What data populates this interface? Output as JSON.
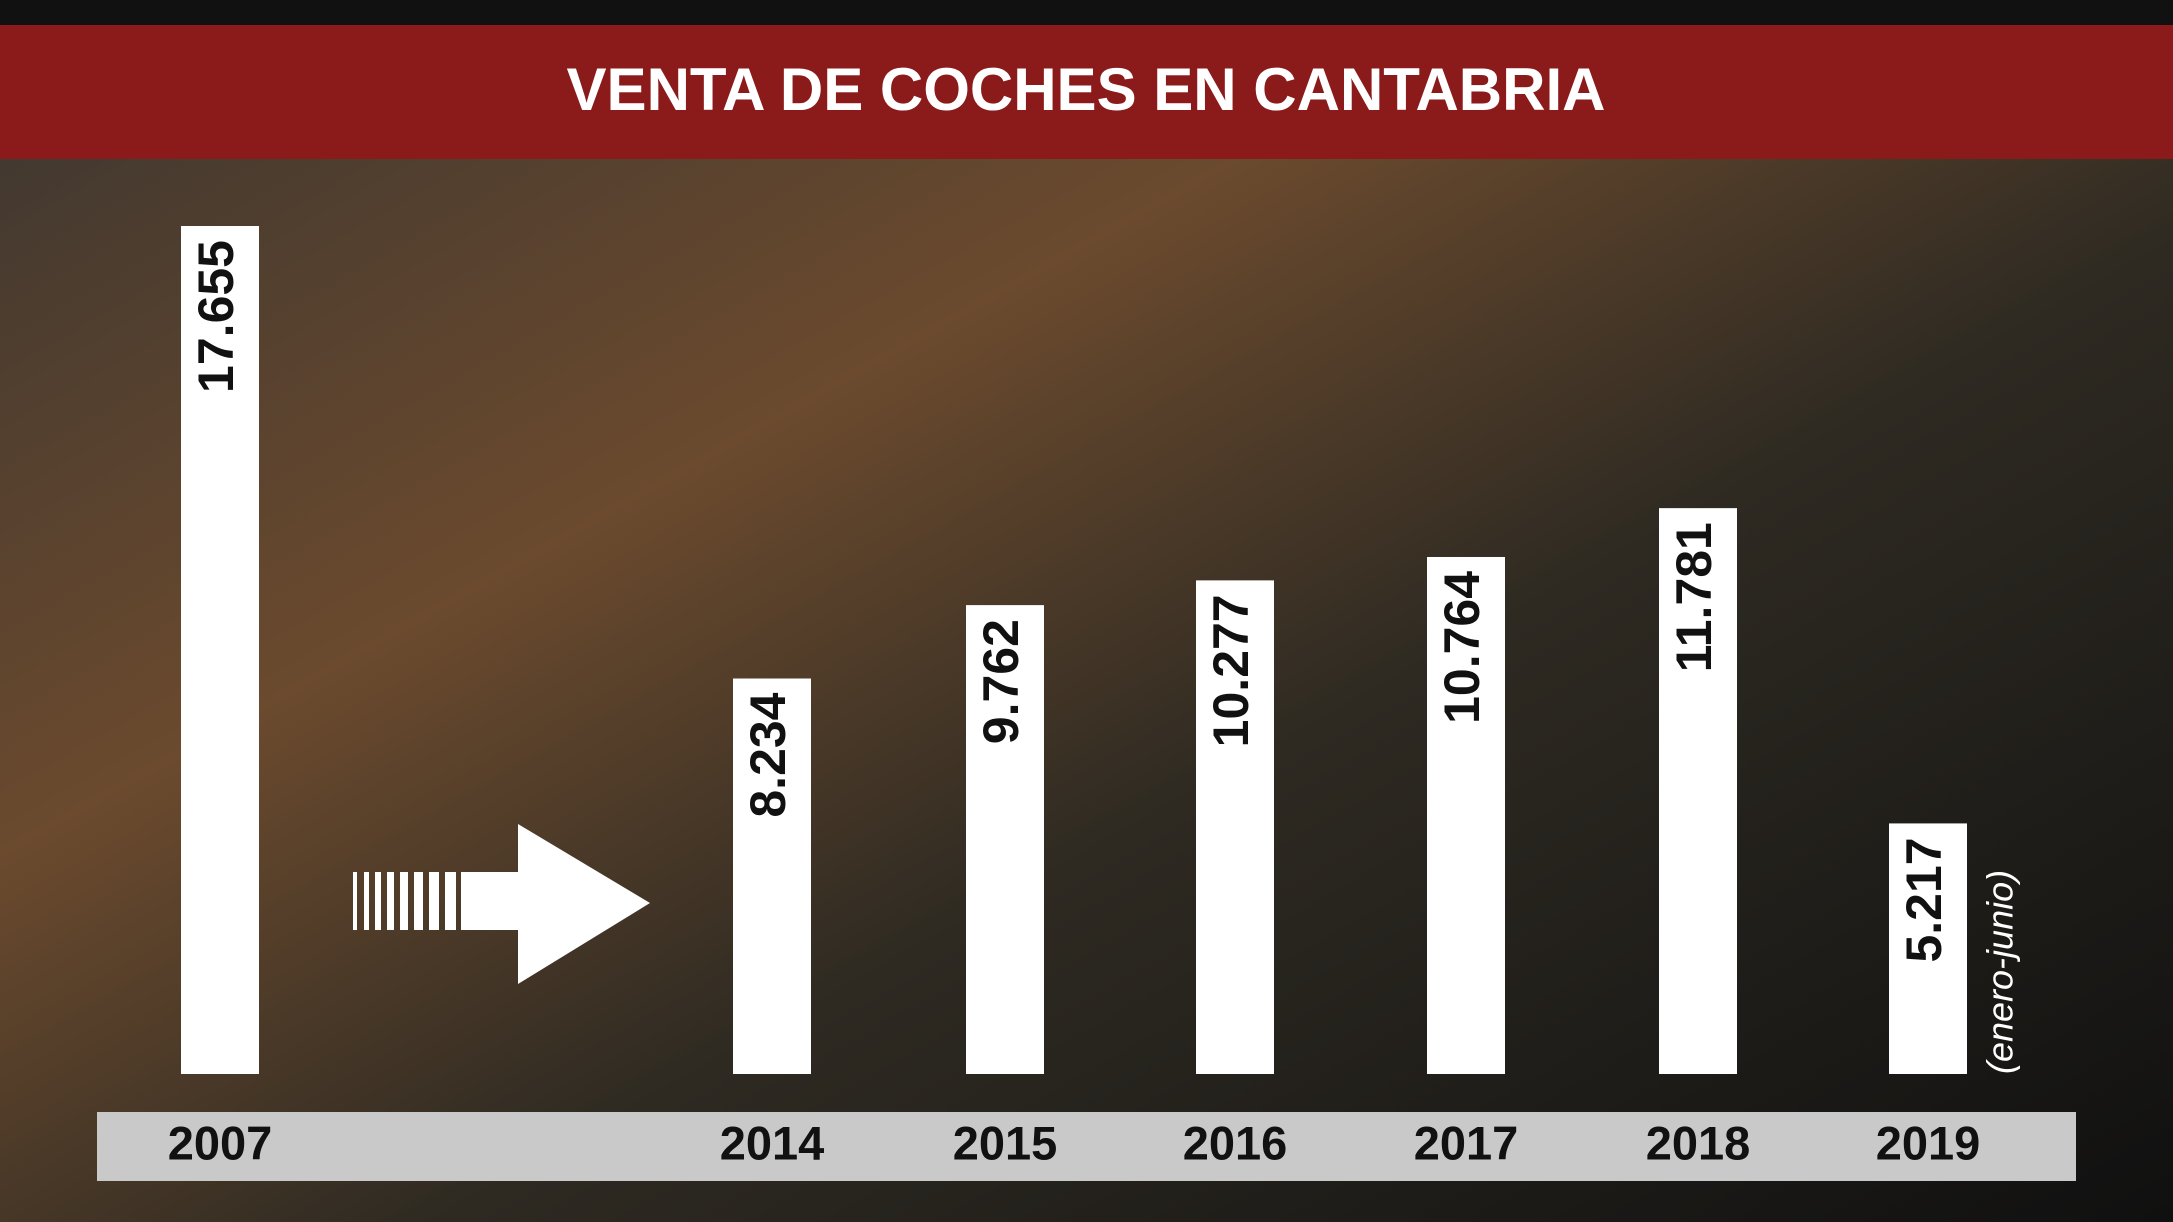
{
  "chart_data": {
    "type": "bar",
    "title": "VENTA DE COCHES EN CANTABRIA",
    "categories": [
      "2007",
      "2014",
      "2015",
      "2016",
      "2017",
      "2018",
      "2019"
    ],
    "values": [
      17655,
      8234,
      9762,
      10277,
      10764,
      11781,
      5217
    ],
    "value_labels": [
      "17.655",
      "8.234",
      "9.762",
      "10.277",
      "10.764",
      "11.781",
      "5.217"
    ],
    "color": "#ffffff",
    "annotations": [
      "(enero-junio)"
    ]
  }
}
